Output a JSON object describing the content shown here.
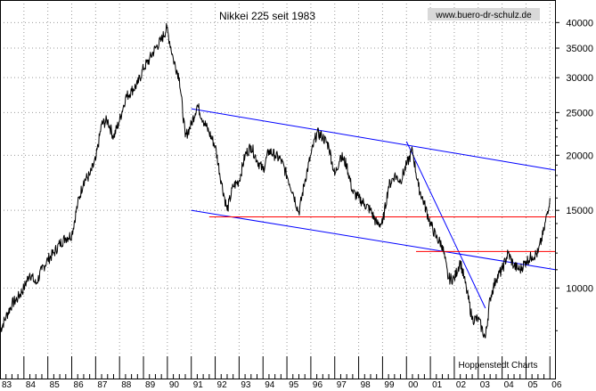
{
  "chart_data": {
    "type": "line",
    "title": "Nikkei 225 seit 1983",
    "url": "www.buero-dr-schulz.de",
    "credit": "Hoppenstedt Charts",
    "y_scale": "log",
    "ylim": [
      7000,
      45000
    ],
    "xlim": [
      1983.0,
      2006.25
    ],
    "y_ticks": [
      10000,
      15000,
      20000,
      25000,
      30000,
      35000,
      40000
    ],
    "y_tick_labels": [
      "10000",
      "15000",
      "20000",
      "25000",
      "30000",
      "35000",
      "40000"
    ],
    "x_ticks": [
      1983,
      1984,
      1985,
      1986,
      1987,
      1988,
      1989,
      1990,
      1991,
      1992,
      1993,
      1994,
      1995,
      1996,
      1997,
      1998,
      1999,
      2000,
      2001,
      2002,
      2003,
      2004,
      2005,
      2006
    ],
    "x_tick_labels": [
      "83",
      "84",
      "85",
      "86",
      "87",
      "88",
      "89",
      "90",
      "91",
      "92",
      "93",
      "94",
      "95",
      "96",
      "97",
      "98",
      "99",
      "00",
      "01",
      "02",
      "03",
      "04",
      "05",
      "06"
    ],
    "grid": true,
    "series": [
      {
        "line_color": "#000000",
        "x": [
          1983.0,
          1983.25,
          1983.5,
          1983.75,
          1984.0,
          1984.25,
          1984.5,
          1984.75,
          1985.0,
          1985.25,
          1985.5,
          1985.75,
          1986.0,
          1986.25,
          1986.5,
          1986.75,
          1987.0,
          1987.25,
          1987.5,
          1987.75,
          1988.0,
          1988.25,
          1988.5,
          1988.75,
          1989.0,
          1989.25,
          1989.5,
          1989.75,
          1989.98,
          1990.25,
          1990.5,
          1990.75,
          1991.0,
          1991.25,
          1991.5,
          1991.75,
          1992.0,
          1992.25,
          1992.5,
          1992.75,
          1993.0,
          1993.25,
          1993.5,
          1993.75,
          1994.0,
          1994.25,
          1994.5,
          1994.75,
          1995.0,
          1995.25,
          1995.5,
          1995.75,
          1996.0,
          1996.25,
          1996.5,
          1996.75,
          1997.0,
          1997.25,
          1997.5,
          1997.75,
          1998.0,
          1998.25,
          1998.5,
          1998.75,
          1999.0,
          1999.25,
          1999.5,
          1999.75,
          2000.0,
          2000.25,
          2000.5,
          2000.75,
          2001.0,
          2001.25,
          2001.5,
          2001.75,
          2002.0,
          2002.25,
          2002.5,
          2002.75,
          2003.0,
          2003.3,
          2003.5,
          2003.75,
          2004.0,
          2004.25,
          2004.5,
          2004.75,
          2005.0,
          2005.25,
          2005.5,
          2005.75,
          2006.0
        ],
        "y": [
          8000,
          8600,
          9200,
          9500,
          10000,
          10800,
          10200,
          11000,
          11600,
          12000,
          12600,
          13000,
          13200,
          15500,
          17500,
          18000,
          19500,
          23500,
          24000,
          22000,
          24000,
          27000,
          28000,
          29000,
          31500,
          33000,
          35000,
          36500,
          38900,
          33000,
          30000,
          22000,
          23500,
          26000,
          24000,
          22500,
          21000,
          17500,
          15000,
          17000,
          17500,
          20000,
          21000,
          19500,
          18500,
          20500,
          20000,
          19500,
          18000,
          16500,
          14800,
          17500,
          20000,
          22500,
          22000,
          21000,
          18000,
          20000,
          19000,
          16500,
          16000,
          15500,
          15000,
          14000,
          14000,
          17000,
          18000,
          17500,
          19000,
          20500,
          17000,
          15500,
          14000,
          13000,
          12500,
          10500,
          10500,
          11500,
          10000,
          8500,
          8500,
          7700,
          9500,
          10500,
          11000,
          12000,
          11200,
          11000,
          11500,
          11800,
          12000,
          13500,
          16000
        ]
      }
    ],
    "annotations": [
      {
        "type": "trendline",
        "color": "#0000ff",
        "from": [
          1991.0,
          25500
        ],
        "to": [
          2006.25,
          18500
        ]
      },
      {
        "type": "trendline",
        "color": "#0000ff",
        "from": [
          1991.0,
          15000
        ],
        "to": [
          2006.25,
          11000
        ]
      },
      {
        "type": "trendline",
        "color": "#0000ff",
        "from": [
          2000.0,
          21500
        ],
        "to": [
          2003.3,
          9000
        ]
      },
      {
        "type": "hline",
        "color": "#ff0000",
        "y": 14500,
        "from_x": 1991.75,
        "to_x": 2006.25
      },
      {
        "type": "hline",
        "color": "#ff0000",
        "y": 12100,
        "from_x": 2000.4,
        "to_x": 2006.25
      }
    ]
  }
}
